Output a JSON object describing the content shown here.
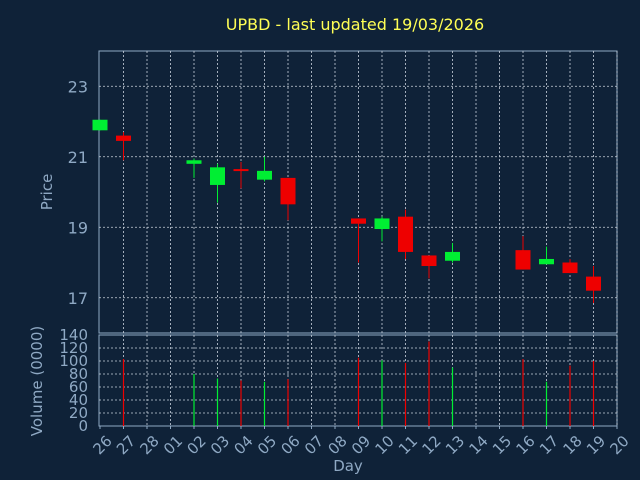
{
  "chart_data": [
    {
      "type": "candlestick",
      "title": "UPBD - last updated 19/03/2026",
      "ylabel": "Price",
      "ylim": [
        16,
        24
      ],
      "yticks": [
        17,
        19,
        21,
        23
      ],
      "grid": true,
      "days": [
        "26",
        "27",
        "28",
        "01",
        "02",
        "03",
        "04",
        "05",
        "06",
        "07",
        "08",
        "09",
        "10",
        "11",
        "12",
        "13",
        "14",
        "15",
        "16",
        "17",
        "18",
        "19",
        "20"
      ],
      "candles": [
        {
          "day": "26",
          "open": 21.75,
          "high": 22.05,
          "low": 21.75,
          "close": 22.05
        },
        {
          "day": "27",
          "open": 21.6,
          "high": 21.7,
          "low": 20.9,
          "close": 21.45
        },
        {
          "day": "02",
          "open": 20.8,
          "high": 20.95,
          "low": 20.4,
          "close": 20.9
        },
        {
          "day": "03",
          "open": 20.2,
          "high": 20.8,
          "low": 19.7,
          "close": 20.7
        },
        {
          "day": "04",
          "open": 20.65,
          "high": 20.85,
          "low": 20.1,
          "close": 20.6
        },
        {
          "day": "05",
          "open": 20.35,
          "high": 21.0,
          "low": 20.3,
          "close": 20.6
        },
        {
          "day": "06",
          "open": 20.4,
          "high": 20.4,
          "low": 19.2,
          "close": 19.65
        },
        {
          "day": "09",
          "open": 19.25,
          "high": 19.25,
          "low": 18.0,
          "close": 19.1
        },
        {
          "day": "10",
          "open": 18.95,
          "high": 19.3,
          "low": 18.6,
          "close": 19.25
        },
        {
          "day": "11",
          "open": 19.3,
          "high": 19.5,
          "low": 18.1,
          "close": 18.3
        },
        {
          "day": "12",
          "open": 18.2,
          "high": 18.2,
          "low": 17.55,
          "close": 17.9
        },
        {
          "day": "13",
          "open": 18.05,
          "high": 18.55,
          "low": 18.0,
          "close": 18.3
        },
        {
          "day": "16",
          "open": 18.35,
          "high": 18.75,
          "low": 17.8,
          "close": 17.8
        },
        {
          "day": "17",
          "open": 17.95,
          "high": 18.45,
          "low": 17.95,
          "close": 18.1
        },
        {
          "day": "18",
          "open": 18.0,
          "high": 18.1,
          "low": 17.7,
          "close": 17.7
        },
        {
          "day": "19",
          "open": 17.6,
          "high": 17.9,
          "low": 16.85,
          "close": 17.2
        }
      ]
    },
    {
      "type": "bar",
      "ylabel": "Volume (0000)",
      "xlabel": "Day",
      "ylim": [
        0,
        140
      ],
      "yticks": [
        0,
        20,
        40,
        60,
        80,
        100,
        120,
        140
      ],
      "volumes": [
        {
          "day": "27",
          "value": 103,
          "dir": "down"
        },
        {
          "day": "02",
          "value": 80,
          "dir": "up"
        },
        {
          "day": "03",
          "value": 73,
          "dir": "up"
        },
        {
          "day": "04",
          "value": 70,
          "dir": "down"
        },
        {
          "day": "05",
          "value": 68,
          "dir": "up"
        },
        {
          "day": "06",
          "value": 72,
          "dir": "down"
        },
        {
          "day": "09",
          "value": 105,
          "dir": "down"
        },
        {
          "day": "10",
          "value": 101,
          "dir": "up"
        },
        {
          "day": "11",
          "value": 97,
          "dir": "down"
        },
        {
          "day": "12",
          "value": 130,
          "dir": "down"
        },
        {
          "day": "13",
          "value": 90,
          "dir": "up"
        },
        {
          "day": "16",
          "value": 103,
          "dir": "down"
        },
        {
          "day": "17",
          "value": 68,
          "dir": "up"
        },
        {
          "day": "18",
          "value": 93,
          "dir": "down"
        },
        {
          "day": "19",
          "value": 100,
          "dir": "down"
        }
      ]
    }
  ],
  "colors": {
    "background": "#0f2238",
    "grid": "#c9d3dc",
    "axis": "#8fa9c4",
    "title": "#ffff55",
    "up": "#00ee33",
    "down": "#ee0000"
  }
}
